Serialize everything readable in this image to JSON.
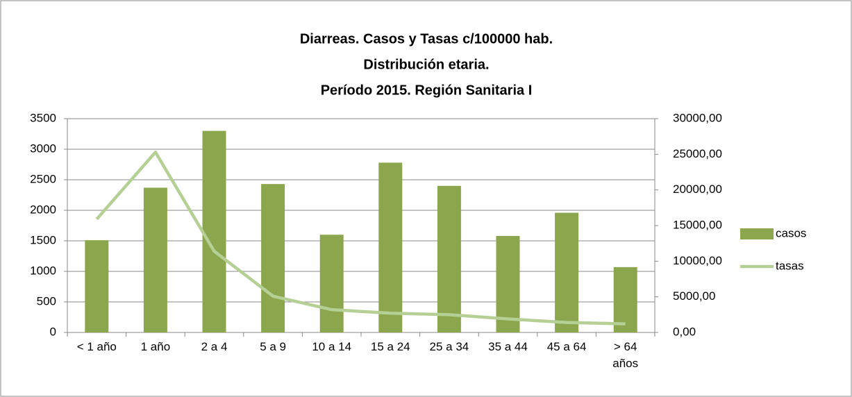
{
  "chart_data": {
    "type": "bar_line",
    "title": [
      "Diarreas. Casos y Tasas c/100000 hab.",
      "Distribución etaria.",
      "Período 2015. Región Sanitaria I"
    ],
    "categories": [
      "< 1 año",
      "1 año",
      "2 a 4",
      "5 a 9",
      "10 a 14",
      "15 a 24",
      "25 a 34",
      "35 a 44",
      "45 a 64",
      "> 64 años"
    ],
    "series": [
      {
        "name": "casos",
        "type": "bar",
        "color": "#8ba64d",
        "values": [
          1510,
          2370,
          3300,
          2430,
          1600,
          2780,
          2400,
          1580,
          1960,
          1070
        ]
      },
      {
        "name": "tasas",
        "type": "line",
        "axis": "y2",
        "color": "#b5cf95",
        "values": [
          15900,
          25300,
          11400,
          5100,
          3200,
          2700,
          2500,
          1900,
          1400,
          1200
        ]
      }
    ],
    "ylim": [
      0,
      3500
    ],
    "yticks": [
      0,
      500,
      1000,
      1500,
      2000,
      2500,
      3000,
      3500
    ],
    "y2lim": [
      0,
      30000
    ],
    "y2ticks": [
      {
        "value": 0,
        "label": "0,00"
      },
      {
        "value": 5000,
        "label": "5000,00"
      },
      {
        "value": 10000,
        "label": "10000,00"
      },
      {
        "value": 15000,
        "label": "15000,00"
      },
      {
        "value": 20000,
        "label": "20000,00"
      },
      {
        "value": 25000,
        "label": "25000,00"
      },
      {
        "value": 30000,
        "label": "30000,00"
      }
    ],
    "grid": true,
    "legend": "right"
  }
}
